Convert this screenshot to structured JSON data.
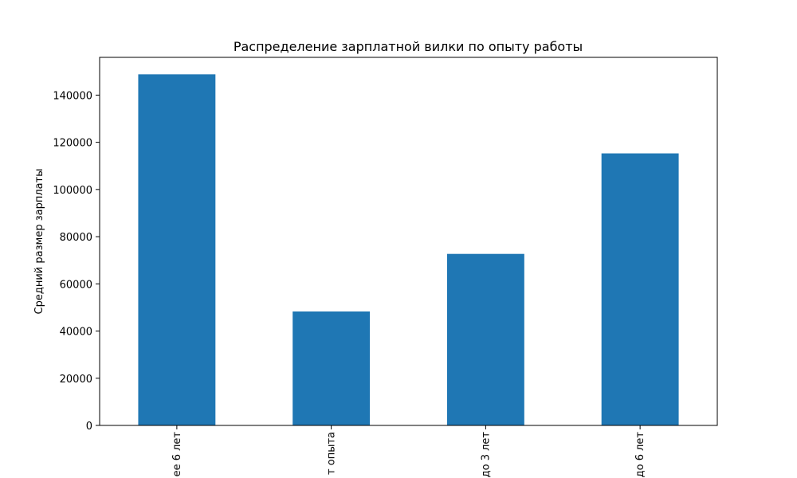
{
  "chart_data": {
    "type": "bar",
    "title": "Распределение зарплатной вилки по опыту работы",
    "xlabel": "",
    "ylabel": "Средний размер зарплаты",
    "categories": [
      "ее 6 лет",
      "т опыта",
      "до 3 лет",
      "до 6 лет"
    ],
    "values": [
      148800,
      48300,
      72700,
      115300
    ],
    "ylim": [
      0,
      156000
    ],
    "yticks": [
      0,
      20000,
      40000,
      60000,
      80000,
      100000,
      120000,
      140000
    ],
    "ytick_labels": [
      "0",
      "20000",
      "40000",
      "60000",
      "80000",
      "100000",
      "120000",
      "140000"
    ],
    "grid": false,
    "bar_color": "#1f77b4"
  }
}
